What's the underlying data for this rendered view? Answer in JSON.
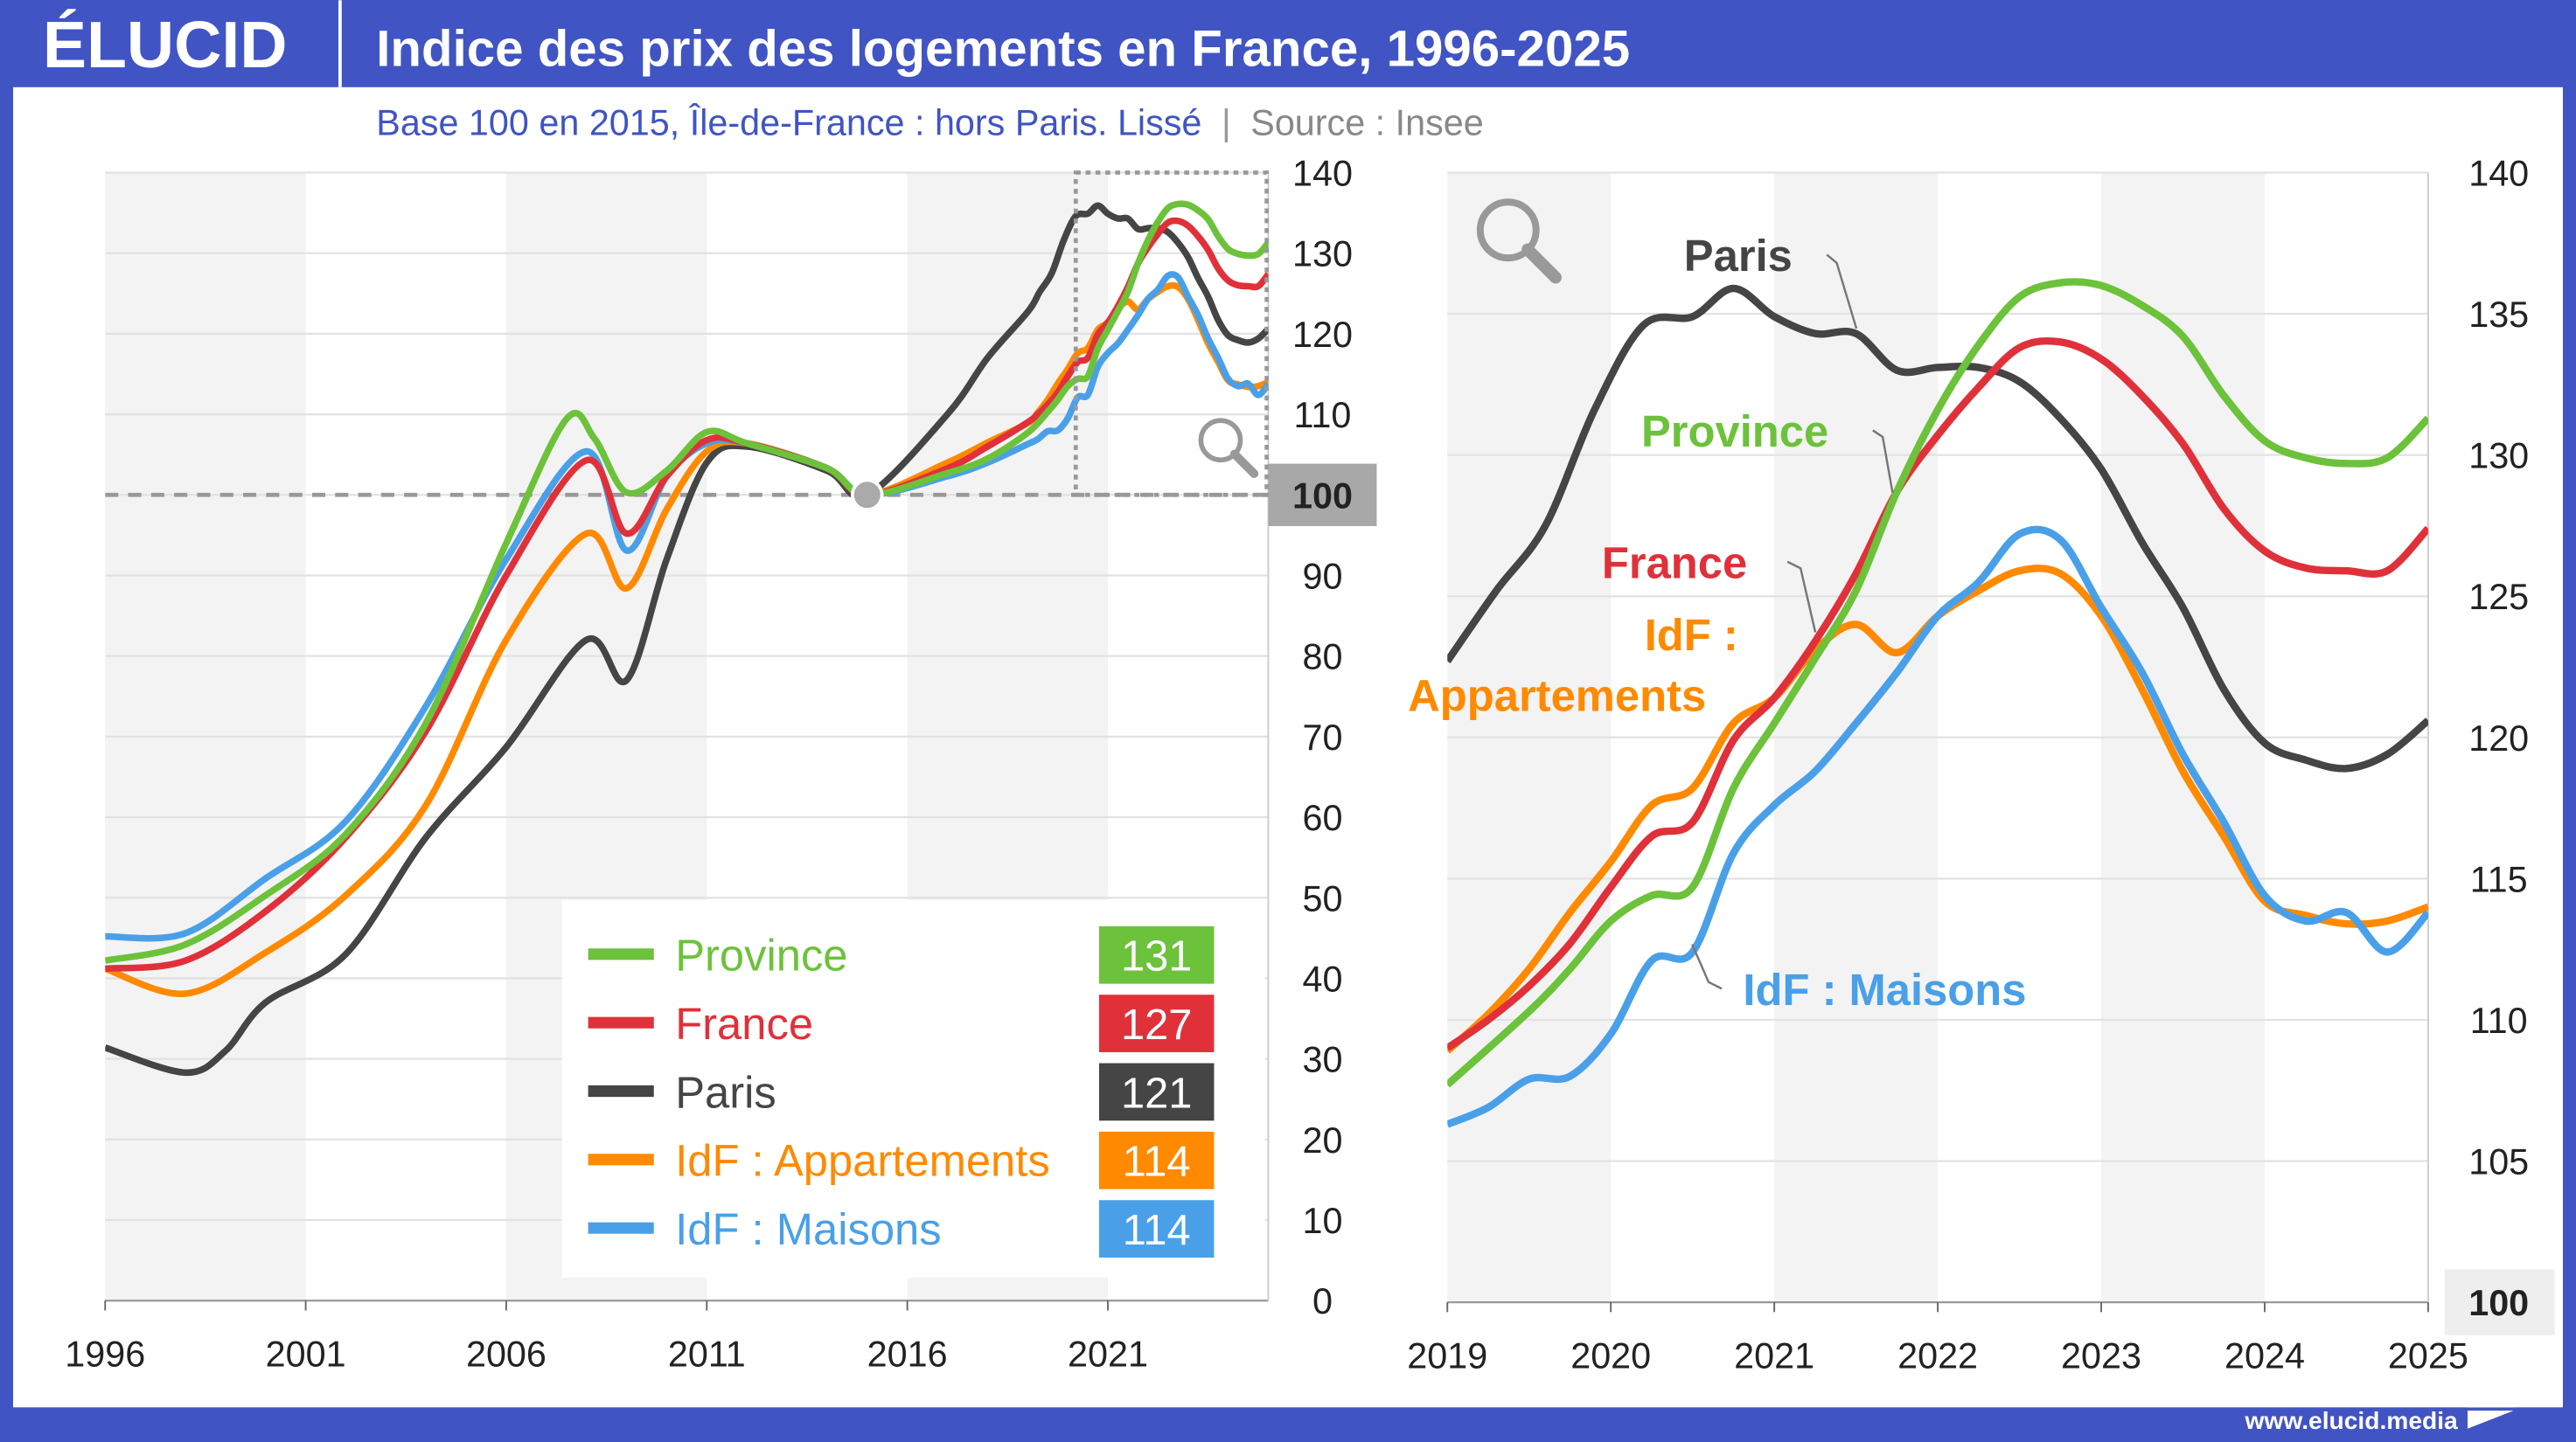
{
  "header": {
    "logo": "ÉLUCID",
    "title": "Indice des prix des logements en France, 1996-2025"
  },
  "subtitle": {
    "text": "Base 100 en 2015, Île-de-France : hors Paris. Lissé",
    "separator": "|",
    "source": "Source : Insee"
  },
  "footer": {
    "url": "www.elucid.media"
  },
  "colors": {
    "frame": "#4054c4",
    "Province": "#6cc23a",
    "France": "#e0313a",
    "Paris": "#454545",
    "IdF : Appartements": "#ff8a00",
    "IdF : Maisons": "#4aa0e8"
  },
  "icons": {
    "zoom": "magnifier-icon"
  },
  "chart_data": [
    {
      "type": "line",
      "panel": "full period",
      "xlim": [
        1996,
        2025
      ],
      "ylim": [
        0,
        140
      ],
      "x_ticks": [
        "1996",
        "2001",
        "2006",
        "2011",
        "2016",
        "2021"
      ],
      "y_ticks": [
        "0",
        "10",
        "20",
        "30",
        "40",
        "50",
        "60",
        "70",
        "80",
        "90",
        "100",
        "110",
        "120",
        "130",
        "140"
      ],
      "y_axis": "right",
      "reference_line": 100,
      "reference_label": "100",
      "base_point": [
        2015,
        100
      ],
      "zoom_region": {
        "x": [
          2020.2,
          2025
        ],
        "y": [
          100,
          140
        ]
      },
      "grid": true,
      "legend": {
        "placement": "bottom-right",
        "entries": [
          {
            "name": "Province",
            "last": "131"
          },
          {
            "name": "France",
            "last": "127"
          },
          {
            "name": "Paris",
            "last": "121"
          },
          {
            "name": "IdF : Appartements",
            "last": "114"
          },
          {
            "name": "IdF : Maisons",
            "last": "114"
          }
        ]
      }
    },
    {
      "type": "line",
      "panel": "zoom",
      "xlim": [
        2019,
        2025
      ],
      "ylim": [
        100,
        140
      ],
      "x_ticks": [
        "2019",
        "2020",
        "2021",
        "2022",
        "2023",
        "2024",
        "2025"
      ],
      "y_ticks": [
        "100",
        "105",
        "110",
        "115",
        "120",
        "125",
        "130",
        "135",
        "140"
      ],
      "y_axis": "right",
      "grid": true,
      "labels": {
        "Paris": "Paris",
        "Province": "Province",
        "France": "France",
        "IdF_a1": "IdF :",
        "IdF_a2": "Appartements",
        "IdF_m": "IdF : Maisons"
      }
    }
  ],
  "series": [
    {
      "name": "Province",
      "points": [
        [
          1996,
          42.2
        ],
        [
          1998,
          44.2
        ],
        [
          2000,
          50.3
        ],
        [
          2002,
          57.9
        ],
        [
          2004,
          71.7
        ],
        [
          2006,
          94
        ],
        [
          2007.5,
          109.4
        ],
        [
          2008.2,
          107
        ],
        [
          2009,
          100.3
        ],
        [
          2010,
          103
        ],
        [
          2011,
          107.8
        ],
        [
          2012,
          106.4
        ],
        [
          2014,
          103.3
        ],
        [
          2015,
          100
        ],
        [
          2017,
          102.7
        ],
        [
          2018,
          104.5
        ],
        [
          2019,
          107.7
        ],
        [
          2019.5,
          110.3
        ],
        [
          2019.75,
          111.8
        ],
        [
          2020,
          113.5
        ],
        [
          2020.25,
          114.4
        ],
        [
          2020.5,
          114.7
        ],
        [
          2020.75,
          118.2
        ],
        [
          2021,
          120.5
        ],
        [
          2021.25,
          122.8
        ],
        [
          2021.5,
          125.2
        ],
        [
          2021.75,
          128.7
        ],
        [
          2022,
          131.6
        ],
        [
          2022.25,
          133.9
        ],
        [
          2022.5,
          135.6
        ],
        [
          2022.75,
          136.1
        ],
        [
          2023,
          136
        ],
        [
          2023.25,
          135.3
        ],
        [
          2023.5,
          134.2
        ],
        [
          2023.75,
          132.1
        ],
        [
          2024,
          130.5
        ],
        [
          2024.25,
          129.9
        ],
        [
          2024.5,
          129.7
        ],
        [
          2024.75,
          129.9
        ],
        [
          2025,
          131.3
        ]
      ]
    },
    {
      "name": "France",
      "points": [
        [
          1996,
          41.2
        ],
        [
          1998,
          42.2
        ],
        [
          2000,
          48.3
        ],
        [
          2002,
          57.5
        ],
        [
          2004,
          70.7
        ],
        [
          2006,
          90
        ],
        [
          2008,
          104.3
        ],
        [
          2009,
          95.2
        ],
        [
          2010,
          102.3
        ],
        [
          2011,
          106.8
        ],
        [
          2012,
          106.4
        ],
        [
          2014,
          103.3
        ],
        [
          2015,
          100
        ],
        [
          2017,
          103.3
        ],
        [
          2018,
          106
        ],
        [
          2019,
          109
        ],
        [
          2019.25,
          110
        ],
        [
          2019.5,
          111.2
        ],
        [
          2019.75,
          112.7
        ],
        [
          2020,
          114.7
        ],
        [
          2020.25,
          116.5
        ],
        [
          2020.5,
          117
        ],
        [
          2020.75,
          119.9
        ],
        [
          2021,
          121.4
        ],
        [
          2021.25,
          123.4
        ],
        [
          2021.5,
          125.8
        ],
        [
          2021.75,
          128.7
        ],
        [
          2022,
          130.7
        ],
        [
          2022.25,
          132.4
        ],
        [
          2022.5,
          133.8
        ],
        [
          2022.75,
          134
        ],
        [
          2023,
          133.4
        ],
        [
          2023.25,
          132.1
        ],
        [
          2023.5,
          130.4
        ],
        [
          2023.75,
          128.1
        ],
        [
          2024,
          126.6
        ],
        [
          2024.25,
          126
        ],
        [
          2024.5,
          125.9
        ],
        [
          2024.75,
          125.9
        ],
        [
          2025,
          127.4
        ]
      ]
    },
    {
      "name": "Paris",
      "points": [
        [
          1996,
          31.4
        ],
        [
          1998,
          28.3
        ],
        [
          1999,
          31
        ],
        [
          2000,
          37
        ],
        [
          2002,
          43
        ],
        [
          2004,
          57.5
        ],
        [
          2006,
          68.7
        ],
        [
          2008,
          82
        ],
        [
          2009,
          77
        ],
        [
          2010,
          92
        ],
        [
          2011,
          104
        ],
        [
          2012,
          106
        ],
        [
          2014,
          103
        ],
        [
          2015,
          100
        ],
        [
          2017,
          110
        ],
        [
          2018,
          117
        ],
        [
          2019,
          122.7
        ],
        [
          2019.3,
          125.2
        ],
        [
          2019.6,
          127.5
        ],
        [
          2019.9,
          131.6
        ],
        [
          2020.2,
          134.6
        ],
        [
          2020.5,
          134.9
        ],
        [
          2020.75,
          135.9
        ],
        [
          2021,
          134.9
        ],
        [
          2021.25,
          134.3
        ],
        [
          2021.5,
          134.3
        ],
        [
          2021.75,
          133
        ],
        [
          2022,
          133.1
        ],
        [
          2022.25,
          133.1
        ],
        [
          2022.5,
          132.6
        ],
        [
          2022.75,
          131.3
        ],
        [
          2023,
          129.5
        ],
        [
          2023.25,
          126.9
        ],
        [
          2023.5,
          124.6
        ],
        [
          2023.75,
          121.7
        ],
        [
          2024,
          119.8
        ],
        [
          2024.25,
          119.2
        ],
        [
          2024.5,
          118.9
        ],
        [
          2024.75,
          119.4
        ],
        [
          2025,
          120.6
        ]
      ]
    },
    {
      "name": "IdF : Appartements",
      "points": [
        [
          1996,
          41.2
        ],
        [
          1998,
          38.1
        ],
        [
          2000,
          43.2
        ],
        [
          2002,
          50.3
        ],
        [
          2004,
          61.5
        ],
        [
          2006,
          82
        ],
        [
          2008,
          95.2
        ],
        [
          2009,
          88.4
        ],
        [
          2010,
          98.2
        ],
        [
          2011,
          105.4
        ],
        [
          2012,
          106.4
        ],
        [
          2014,
          103.3
        ],
        [
          2015,
          100
        ],
        [
          2017,
          104
        ],
        [
          2018,
          106.5
        ],
        [
          2019,
          108.9
        ],
        [
          2019.25,
          110.2
        ],
        [
          2019.5,
          111.8
        ],
        [
          2019.75,
          113.8
        ],
        [
          2020,
          115.6
        ],
        [
          2020.25,
          117.6
        ],
        [
          2020.5,
          118.2
        ],
        [
          2020.75,
          120.5
        ],
        [
          2021,
          121.4
        ],
        [
          2021.25,
          123.1
        ],
        [
          2021.5,
          124
        ],
        [
          2021.75,
          123
        ],
        [
          2022,
          124.3
        ],
        [
          2022.25,
          125.2
        ],
        [
          2022.5,
          125.9
        ],
        [
          2022.75,
          125.8
        ],
        [
          2023,
          124.3
        ],
        [
          2023.25,
          121.7
        ],
        [
          2023.5,
          118.8
        ],
        [
          2023.75,
          116.5
        ],
        [
          2024,
          114.2
        ],
        [
          2024.25,
          113.7
        ],
        [
          2024.5,
          113.4
        ],
        [
          2024.75,
          113.5
        ],
        [
          2025,
          114
        ]
      ]
    },
    {
      "name": "IdF : Maisons",
      "points": [
        [
          1996,
          45.2
        ],
        [
          1998,
          45.6
        ],
        [
          2000,
          52.4
        ],
        [
          2002,
          59.5
        ],
        [
          2004,
          73.8
        ],
        [
          2006,
          92
        ],
        [
          2008,
          105.4
        ],
        [
          2009,
          93.1
        ],
        [
          2010,
          102.3
        ],
        [
          2011,
          106.4
        ],
        [
          2012,
          106.4
        ],
        [
          2014,
          103.3
        ],
        [
          2015,
          100
        ],
        [
          2017,
          102.3
        ],
        [
          2018,
          104
        ],
        [
          2019,
          106.3
        ],
        [
          2019.25,
          106.9
        ],
        [
          2019.5,
          107.9
        ],
        [
          2019.75,
          108
        ],
        [
          2020,
          109.5
        ],
        [
          2020.25,
          112.1
        ],
        [
          2020.5,
          112.4
        ],
        [
          2020.75,
          115.9
        ],
        [
          2021,
          117.6
        ],
        [
          2021.25,
          118.8
        ],
        [
          2021.5,
          120.5
        ],
        [
          2021.75,
          122.3
        ],
        [
          2022,
          124.3
        ],
        [
          2022.25,
          125.5
        ],
        [
          2022.5,
          127.2
        ],
        [
          2022.75,
          127
        ],
        [
          2023,
          124.6
        ],
        [
          2023.25,
          122.3
        ],
        [
          2023.5,
          119.4
        ],
        [
          2023.75,
          117
        ],
        [
          2024,
          114.4
        ],
        [
          2024.25,
          113.5
        ],
        [
          2024.5,
          113.8
        ],
        [
          2024.75,
          112.4
        ],
        [
          2025,
          113.8
        ]
      ]
    }
  ]
}
